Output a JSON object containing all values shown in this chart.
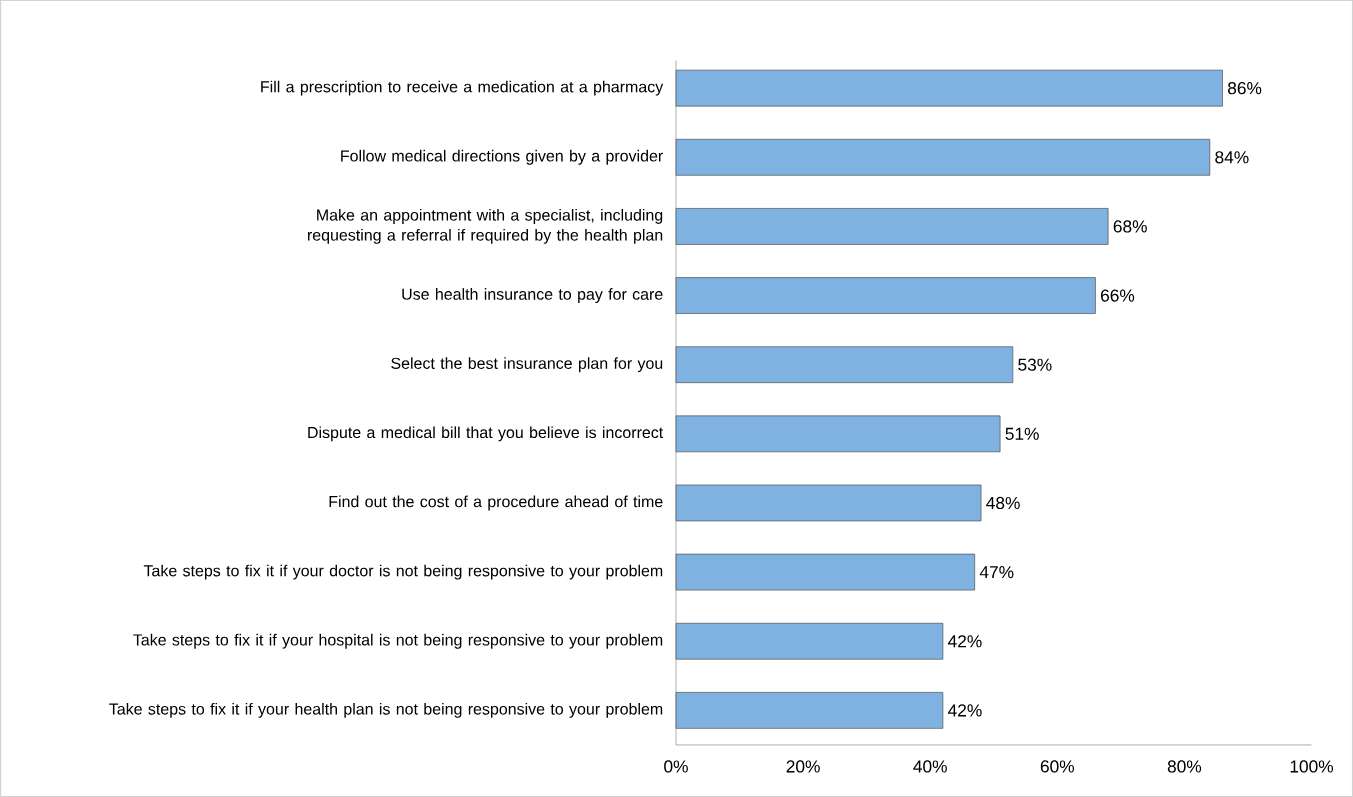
{
  "chart_data": {
    "type": "bar",
    "orientation": "horizontal",
    "categories": [
      "Fill a prescription to receive a medication at a pharmacy",
      "Follow medical directions given by a provider",
      "Make an appointment with a specialist, including requesting a referral if required by the health plan",
      "Use health insurance to pay for care",
      "Select the best insurance plan for you",
      "Dispute a medical bill that you believe is incorrect",
      "Find out the cost of a procedure ahead of time",
      "Take steps to fix it if your doctor is not being responsive to your problem",
      "Take steps to fix it if your hospital is not being responsive to your problem",
      "Take steps to fix it if your health plan is not being responsive to your problem"
    ],
    "values": [
      86,
      84,
      68,
      66,
      53,
      51,
      48,
      47,
      42,
      42
    ],
    "value_labels": [
      "86%",
      "84%",
      "68%",
      "66%",
      "53%",
      "51%",
      "48%",
      "47%",
      "42%",
      "42%"
    ],
    "color": "#7fb2e0",
    "xlim": [
      0,
      100
    ],
    "xticks": [
      {
        "value": 0,
        "label": "0%"
      },
      {
        "value": 20,
        "label": "20%"
      },
      {
        "value": 40,
        "label": "40%"
      },
      {
        "value": 60,
        "label": "60%"
      },
      {
        "value": 80,
        "label": "80%"
      },
      {
        "value": 100,
        "label": "100%"
      }
    ],
    "grid": false
  }
}
